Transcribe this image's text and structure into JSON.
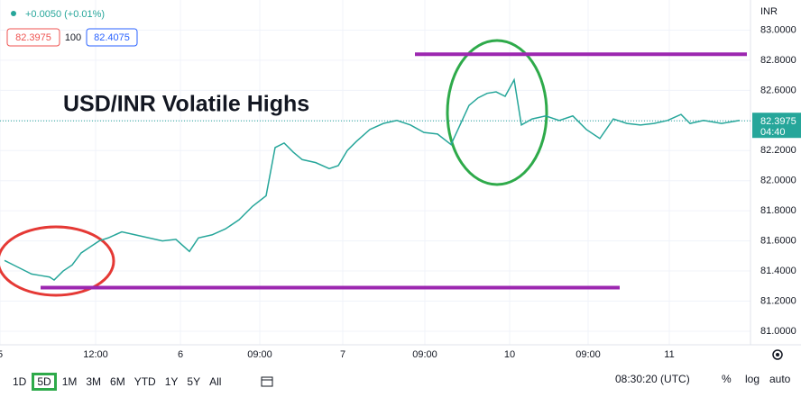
{
  "header": {
    "change": "+0.0050 (+0.01%)",
    "bid": "82.3975",
    "spread": "100",
    "ask": "82.4075",
    "currency": "INR"
  },
  "chart_data": {
    "type": "line",
    "title": "USD/INR Volatile Highs",
    "color": "#26a69a",
    "x": [
      0.5,
      1.5,
      2.5,
      3.5,
      4.5,
      5.5,
      6,
      7,
      8,
      9,
      10,
      11,
      12,
      13.5,
      15,
      16.5,
      18,
      19.5,
      21,
      22,
      23.5,
      25,
      26.5,
      28,
      29.5,
      30.5,
      31.5,
      32.5,
      33.5,
      35,
      36.5,
      37.5,
      38.5,
      39.5,
      41,
      42.5,
      44,
      45.5,
      47,
      48.5,
      50,
      51,
      52,
      53,
      54,
      55,
      56,
      57,
      57.8,
      59,
      60.5,
      62,
      63.5,
      65,
      66.5,
      68,
      69.5,
      71,
      72.5,
      74,
      75.5,
      76.5,
      78,
      80,
      82
    ],
    "values": [
      81.47,
      81.44,
      81.41,
      81.38,
      81.37,
      81.36,
      81.34,
      81.4,
      81.44,
      81.52,
      81.56,
      81.6,
      81.62,
      81.66,
      81.64,
      81.62,
      81.6,
      81.61,
      81.53,
      81.62,
      81.64,
      81.68,
      81.74,
      81.83,
      81.9,
      82.22,
      82.25,
      82.19,
      82.14,
      82.12,
      82.08,
      82.1,
      82.2,
      82.26,
      82.34,
      82.38,
      82.4,
      82.37,
      82.32,
      82.31,
      82.24,
      82.37,
      82.5,
      82.55,
      82.58,
      82.59,
      82.56,
      82.67,
      82.37,
      82.41,
      82.43,
      82.4,
      82.43,
      82.34,
      82.28,
      82.41,
      82.38,
      82.37,
      82.38,
      82.4,
      82.44,
      82.38,
      82.4,
      82.38,
      82.4
    ],
    "xlim": [
      0,
      83.2
    ],
    "ylim": [
      80.91,
      83.2
    ],
    "xticks": [
      {
        "value": 0,
        "label": "5"
      },
      {
        "value": 10.6,
        "label": "12:00"
      },
      {
        "value": 20,
        "label": "6"
      },
      {
        "value": 28.8,
        "label": "09:00"
      },
      {
        "value": 38,
        "label": "7"
      },
      {
        "value": 47.1,
        "label": "09:00"
      },
      {
        "value": 56.5,
        "label": "10"
      },
      {
        "value": 65.2,
        "label": "09:00"
      },
      {
        "value": 74.2,
        "label": "11"
      }
    ],
    "yticks": [
      {
        "value": 81,
        "label": "81.0000"
      },
      {
        "value": 81.2,
        "label": "81.2000"
      },
      {
        "value": 81.4,
        "label": "81.4000"
      },
      {
        "value": 81.6,
        "label": "81.6000"
      },
      {
        "value": 81.8,
        "label": "81.8000"
      },
      {
        "value": 82,
        "label": "82.0000"
      },
      {
        "value": 82.2,
        "label": "82.2000"
      },
      {
        "value": 82.4,
        "label": "82.4000"
      },
      {
        "value": 82.6,
        "label": "82.6000"
      },
      {
        "value": 82.8,
        "label": "82.8000"
      },
      {
        "value": 83,
        "label": "83.0000"
      }
    ],
    "grid": true,
    "last_price": 82.3975,
    "countdown": "04:40",
    "levels": [
      {
        "value": 82.84,
        "x": [
          46,
          82.8
        ],
        "color": "#9c27b0"
      },
      {
        "value": 81.29,
        "x": [
          4.5,
          68.7
        ],
        "color": "#9c27b0"
      }
    ]
  },
  "toolbar": {
    "ranges": [
      "1D",
      "5D",
      "1M",
      "3M",
      "6M",
      "YTD",
      "1Y",
      "5Y",
      "All"
    ],
    "clock": "08:30:20 (UTC)",
    "percent": "%",
    "log": "log",
    "auto": "auto"
  }
}
